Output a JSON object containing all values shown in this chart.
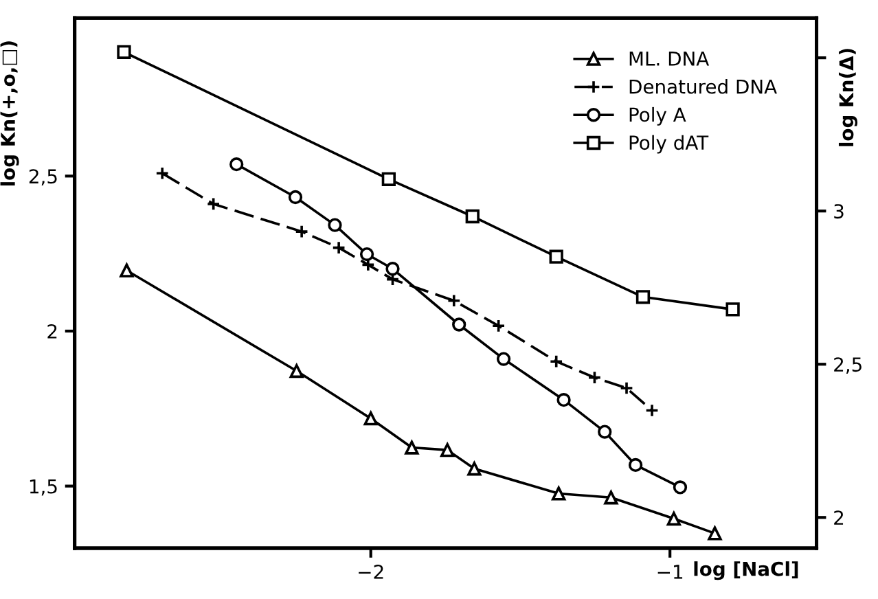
{
  "chart_data": {
    "type": "line",
    "xlabel": "log [NaCl]",
    "ylabel": "log Kn(+,o,□)",
    "y2label": "log Kn(Δ)",
    "xlim": [
      -2.99,
      -0.51
    ],
    "xticks": [
      {
        "value": -2,
        "label": "−2"
      },
      {
        "value": -1,
        "label": "−1"
      }
    ],
    "ylim": [
      1.3,
      3.01
    ],
    "yticks": [
      {
        "value": 1.5,
        "label": "1,5"
      },
      2,
      {
        "value": 2.5,
        "label": "2,5"
      }
    ],
    "y2lim": [
      1.9,
      3.63
    ],
    "y2ticks": [
      2,
      {
        "value": 2.5,
        "label": "2,5"
      },
      3,
      {
        "value": 3.5,
        "label": null
      }
    ],
    "grid": false,
    "legend": "top right",
    "series": [
      {
        "name": "ML. DNA",
        "color": "#000000",
        "axis": "y2",
        "marker": "triangle",
        "line_style": "solid",
        "x": [
          -2.816,
          -2.248,
          -2.0,
          -1.863,
          -1.744,
          -1.654,
          -1.372,
          -1.197,
          -0.987,
          -0.85
        ],
        "values": [
          2.806,
          2.478,
          2.323,
          2.228,
          2.22,
          2.159,
          2.078,
          2.065,
          1.996,
          1.948
        ]
      },
      {
        "name": "Denatured DNA",
        "color": "#000000",
        "marker": "cross",
        "line_style": "dashed",
        "x": [
          -2.697,
          -2.526,
          -2.231,
          -2.107,
          -2.009,
          -1.927,
          -1.722,
          -1.573,
          -1.38,
          -1.252,
          -1.145,
          -1.06
        ],
        "values": [
          2.509,
          2.41,
          2.321,
          2.269,
          2.214,
          2.167,
          2.098,
          2.017,
          1.902,
          1.85,
          1.816,
          1.744
        ]
      },
      {
        "name": "Poly A",
        "color": "#000000",
        "marker": "circle",
        "line_style": "solid",
        "x": [
          -2.449,
          -2.252,
          -2.12,
          -2.013,
          -1.927,
          -1.705,
          -1.556,
          -1.355,
          -1.218,
          -1.115,
          -0.966
        ],
        "values": [
          2.538,
          2.432,
          2.342,
          2.248,
          2.201,
          2.021,
          1.91,
          1.778,
          1.675,
          1.568,
          1.496
        ]
      },
      {
        "name": "Poly dAT",
        "color": "#000000",
        "marker": "square",
        "line_style": "solid",
        "x": [
          -2.825,
          -1.94,
          -1.66,
          -1.38,
          -1.09,
          -0.79
        ],
        "values": [
          2.9,
          2.49,
          2.37,
          2.24,
          2.11,
          2.07
        ]
      }
    ]
  }
}
